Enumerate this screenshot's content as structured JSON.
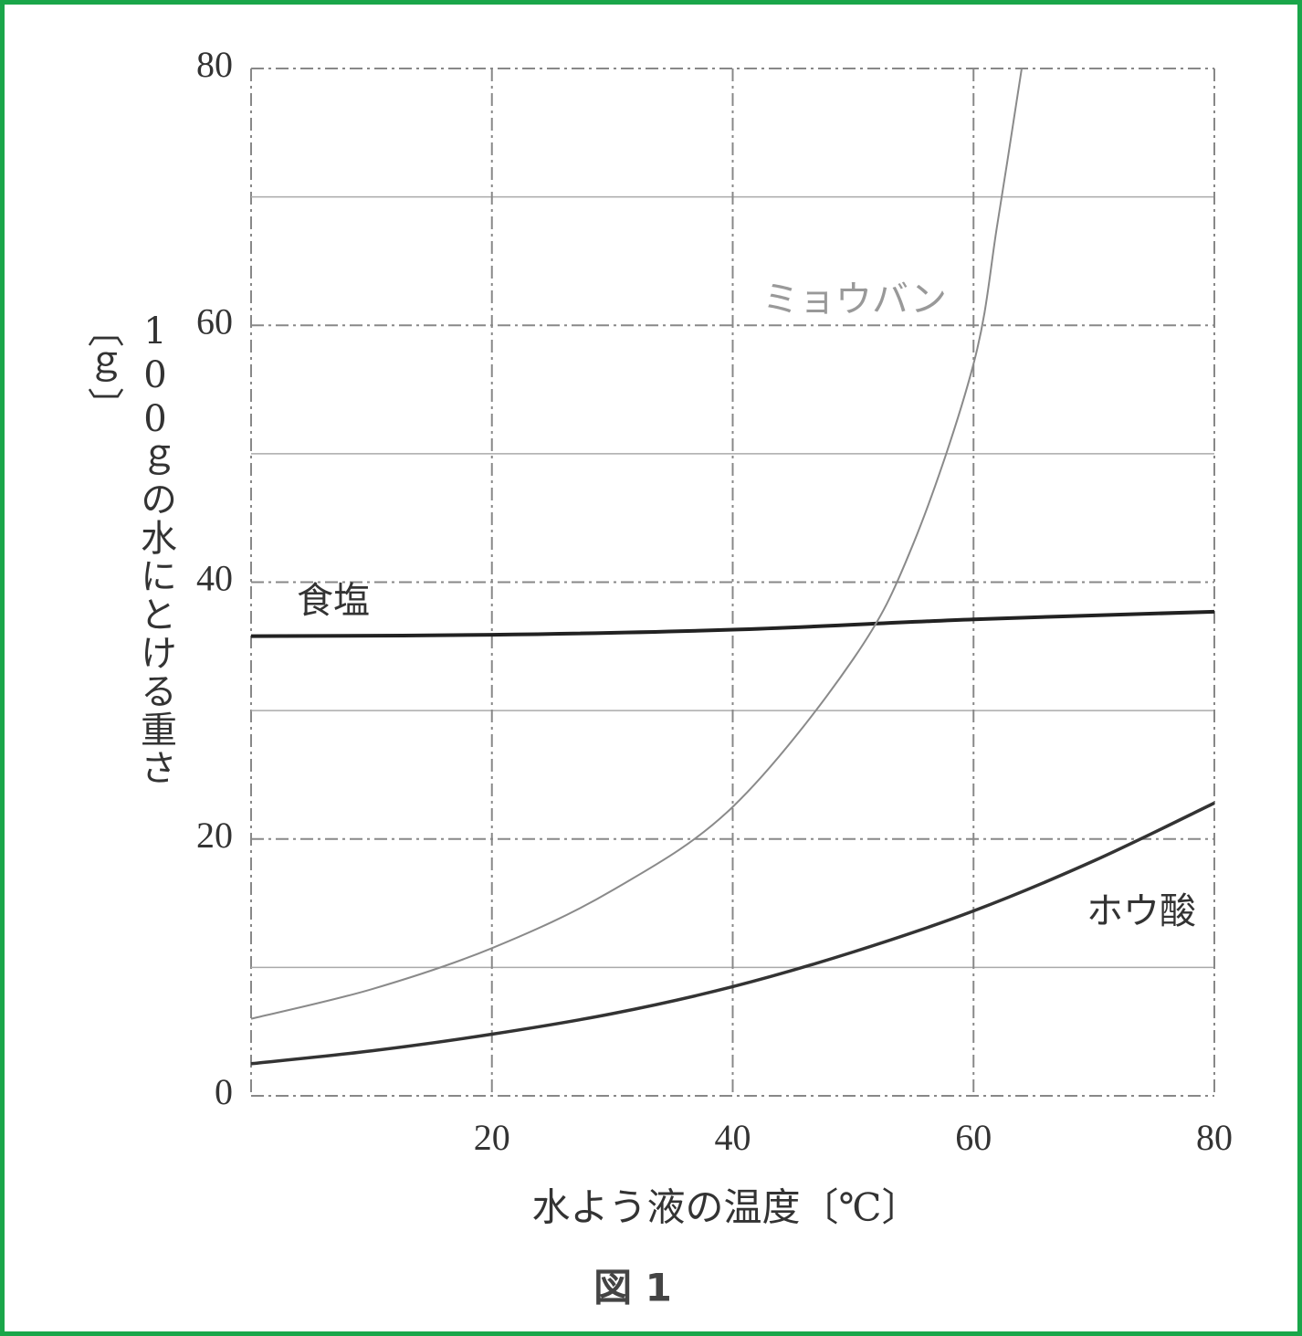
{
  "chart_data": {
    "type": "line",
    "caption": "図 1",
    "x_label": "水よう液の温度〔℃〕",
    "y_label": "100ｇの水にとける重さ〔ｇ〕",
    "xlim": [
      0,
      80
    ],
    "xticks": [
      20,
      40,
      60,
      80
    ],
    "ylim": [
      0,
      80
    ],
    "yticks": [
      0,
      20,
      40,
      60,
      80
    ],
    "y_minor_gridlines": [
      10,
      30,
      50,
      70
    ],
    "grid": true,
    "series": [
      {
        "name": "食塩",
        "color": "#222222",
        "x": [
          0,
          20,
          40,
          60,
          80
        ],
        "values": [
          35.8,
          35.9,
          36.3,
          37.1,
          37.7
        ]
      },
      {
        "name": "ミョウバン",
        "color": "#8a8a8a",
        "x": [
          0,
          10,
          20,
          30,
          40,
          50,
          55,
          60,
          62,
          64
        ],
        "values": [
          6,
          8.3,
          11.5,
          16,
          22.5,
          34,
          43,
          57,
          68,
          80
        ]
      },
      {
        "name": "ホウ酸",
        "color": "#333333",
        "x": [
          0,
          10,
          20,
          30,
          40,
          50,
          60,
          70,
          80
        ],
        "values": [
          2.5,
          3.5,
          4.8,
          6.4,
          8.5,
          11.2,
          14.4,
          18.3,
          22.8
        ]
      }
    ]
  }
}
